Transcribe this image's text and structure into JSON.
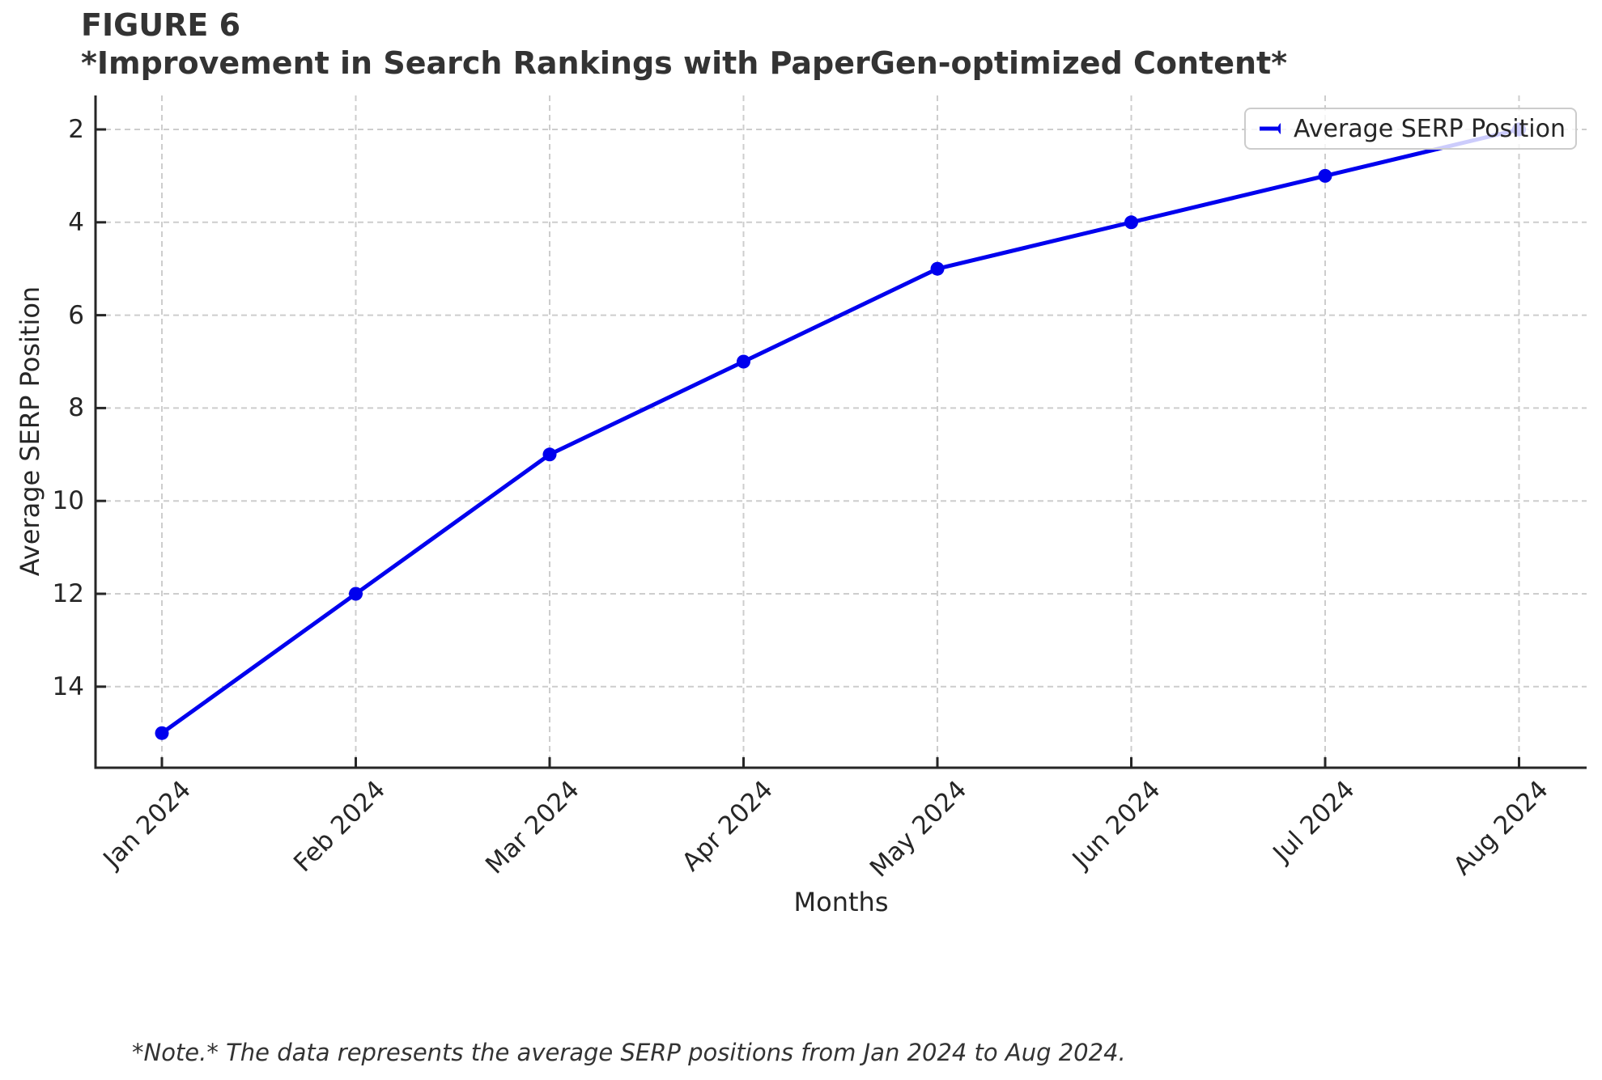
{
  "figure": {
    "label": "FIGURE 6",
    "title": "*Improvement in Search Rankings with PaperGen-optimized Content*"
  },
  "chart_data": {
    "type": "line",
    "title": "*Improvement in Search Rankings with PaperGen-optimized Content*",
    "categories": [
      "Jan 2024",
      "Feb 2024",
      "Mar 2024",
      "Apr 2024",
      "May 2024",
      "Jun 2024",
      "Jul 2024",
      "Aug 2024"
    ],
    "series": [
      {
        "name": "Average SERP Position",
        "values": [
          15,
          12,
          9,
          7,
          5,
          4,
          3,
          2
        ]
      }
    ],
    "xlabel": "Months",
    "ylabel": "Average SERP Position",
    "y_ticks": [
      2,
      4,
      6,
      8,
      10,
      12,
      14
    ],
    "ylim": [
      15.75,
      1.27
    ],
    "y_axis_inverted": true,
    "grid": true,
    "legend_position": "upper right",
    "colors": {
      "line": "#0000ee",
      "grid": "#cdcdcd",
      "spine": "#262626",
      "tick_text": "#262626"
    },
    "marker": "circle"
  },
  "legend": {
    "label": "Average SERP Position"
  },
  "note": {
    "text": "*Note.* The data represents the average SERP positions from Jan 2024 to Aug 2024."
  }
}
